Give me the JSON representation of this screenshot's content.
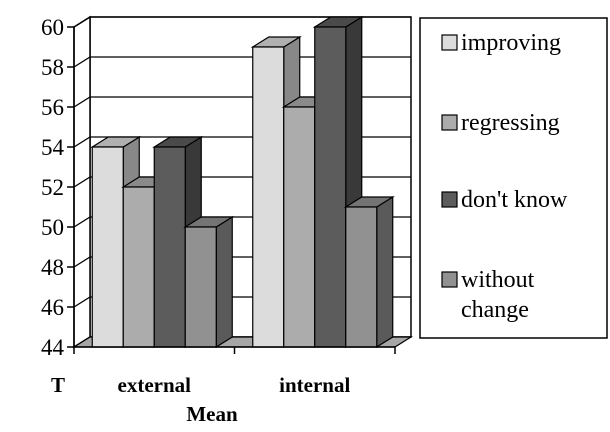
{
  "chart_data": {
    "type": "bar",
    "style": "3d-clustered-column",
    "x_prefix_label": "T",
    "xlabel": "Mean",
    "ylabel": "",
    "categories": [
      "external",
      "internal"
    ],
    "series": [
      {
        "name": "improving",
        "values": [
          54,
          59
        ],
        "color": "#dcdcdc"
      },
      {
        "name": "regressing",
        "values": [
          52,
          56
        ],
        "color": "#acacac"
      },
      {
        "name": "don't know",
        "values": [
          54,
          60
        ],
        "color": "#5c5c5c"
      },
      {
        "name": "without change",
        "name_lines": [
          "without",
          "change"
        ],
        "values": [
          50,
          51
        ],
        "color": "#919191"
      }
    ],
    "ylim": [
      44,
      60
    ],
    "yticks": [
      44,
      46,
      48,
      50,
      52,
      54,
      56,
      58,
      60
    ],
    "grid": true,
    "legend_position": "right"
  }
}
